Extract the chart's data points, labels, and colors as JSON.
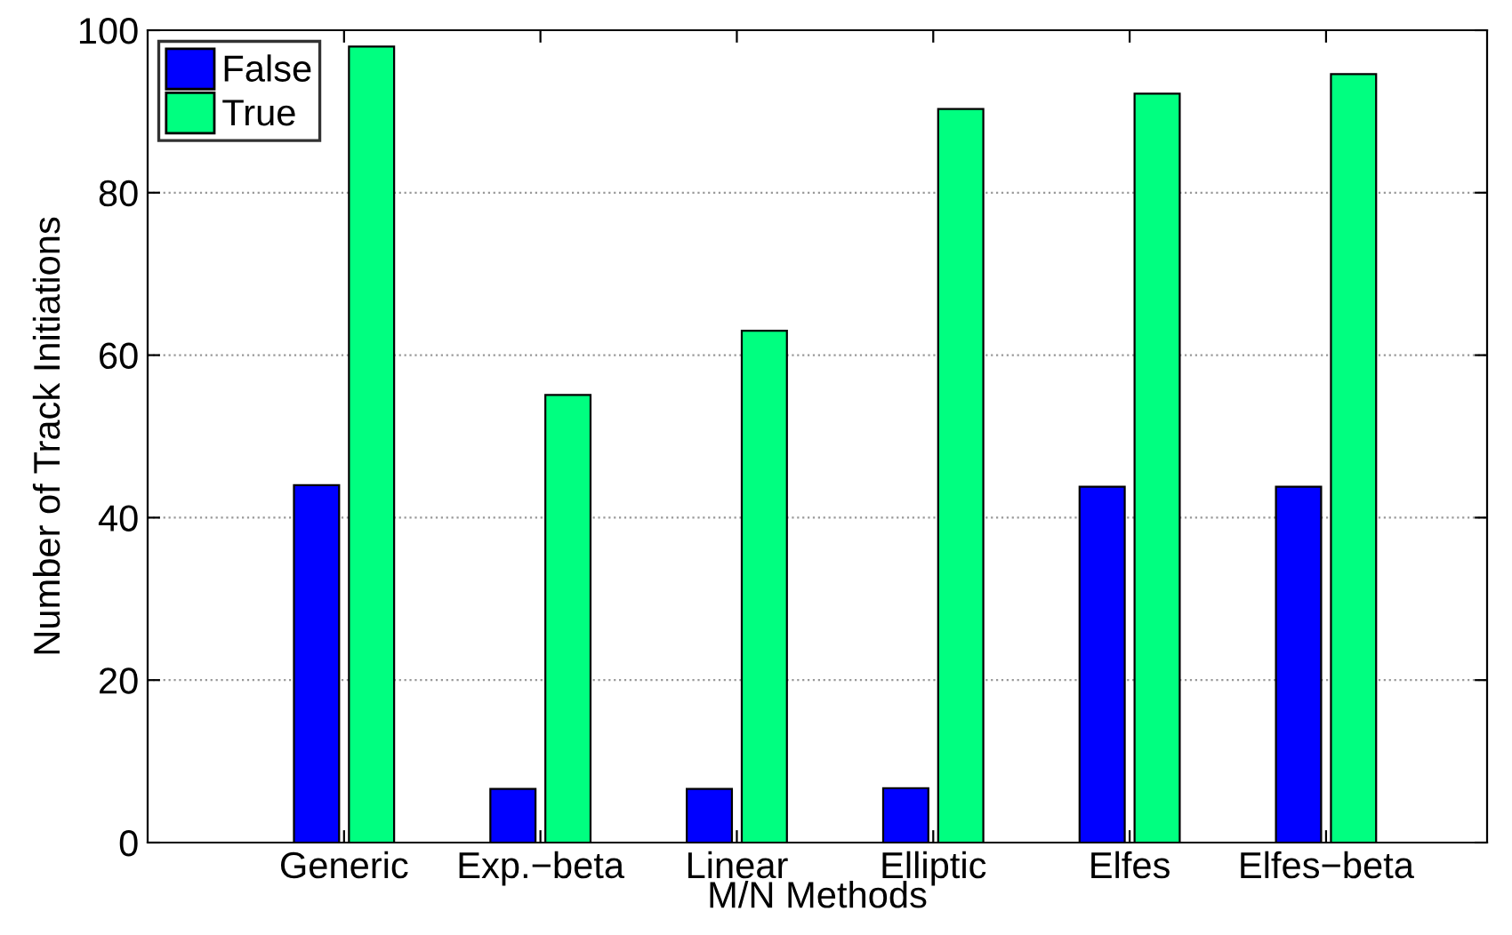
{
  "chart_data": {
    "type": "bar",
    "xlabel": "M/N Methods",
    "ylabel": "Number of Track Initiations",
    "categories": [
      "Generic",
      "Exp.−beta",
      "Linear",
      "Elliptic",
      "Elfes",
      "Elfes−beta"
    ],
    "series": [
      {
        "name": "False",
        "color": "#0000ff",
        "values": [
          44.0,
          6.6,
          6.6,
          6.7,
          43.8,
          43.8
        ]
      },
      {
        "name": "True",
        "color": "#00ff80",
        "values": [
          98.0,
          55.1,
          63.0,
          90.3,
          92.2,
          94.6
        ]
      }
    ],
    "ylim": [
      0,
      100
    ],
    "yticks": [
      0,
      20,
      40,
      60,
      80,
      100
    ],
    "grid": "y",
    "legend": "top left"
  }
}
